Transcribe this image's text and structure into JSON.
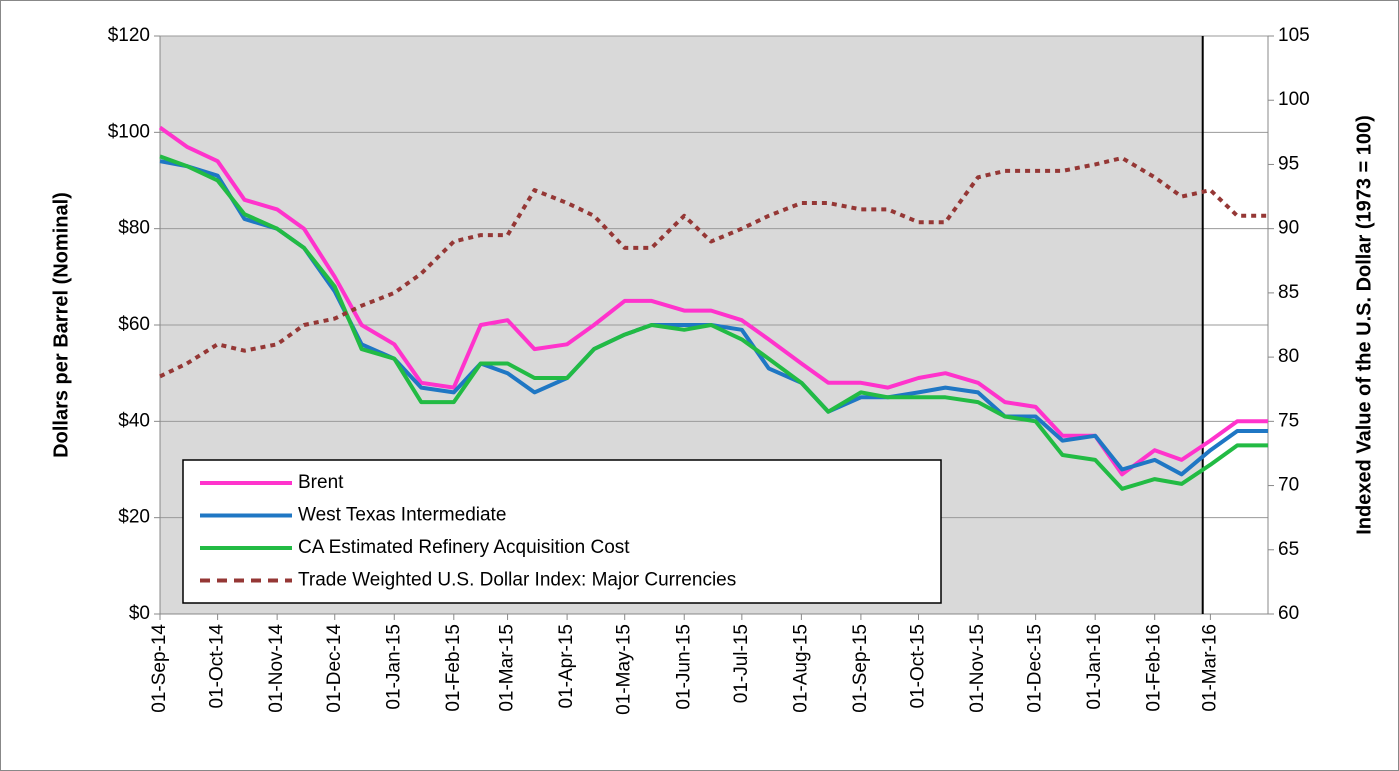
{
  "chart_data": {
    "type": "line",
    "y_label": "Dollars per Barrel (Nominal)",
    "y2_label": "Indexed Value of the U.S. Dollar (1973 = 100)",
    "x": [
      "2014-09-01",
      "2014-09-15",
      "2014-10-01",
      "2014-10-15",
      "2014-11-01",
      "2014-11-15",
      "2014-12-01",
      "2014-12-15",
      "2015-01-01",
      "2015-01-15",
      "2015-02-01",
      "2015-02-15",
      "2015-03-01",
      "2015-03-15",
      "2015-04-01",
      "2015-04-15",
      "2015-05-01",
      "2015-05-15",
      "2015-06-01",
      "2015-06-15",
      "2015-07-01",
      "2015-07-15",
      "2015-08-01",
      "2015-08-15",
      "2015-09-01",
      "2015-09-15",
      "2015-10-01",
      "2015-10-15",
      "2015-11-01",
      "2015-11-15",
      "2015-12-01",
      "2015-12-15",
      "2016-01-01",
      "2016-01-15",
      "2016-02-01",
      "2016-02-15",
      "2016-03-01",
      "2016-03-15",
      "2016-03-31"
    ],
    "series": [
      {
        "name": "Brent",
        "color": "#ff33cc",
        "values": [
          101,
          97,
          94,
          86,
          84,
          80,
          70,
          60,
          56,
          48,
          47,
          60,
          61,
          55,
          56,
          60,
          65,
          65,
          63,
          63,
          61,
          57,
          52,
          48,
          48,
          47,
          49,
          50,
          48,
          44,
          43,
          37,
          37,
          29,
          34,
          32,
          36,
          40,
          40
        ]
      },
      {
        "name": "West Texas Intermediate",
        "color": "#1f77c4",
        "values": [
          94,
          93,
          91,
          82,
          80,
          76,
          67,
          56,
          53,
          47,
          46,
          52,
          50,
          46,
          49,
          55,
          58,
          60,
          60,
          60,
          59,
          51,
          48,
          42,
          45,
          45,
          46,
          47,
          46,
          41,
          41,
          36,
          37,
          30,
          32,
          29,
          34,
          38,
          38
        ]
      },
      {
        "name": "CA Estimated Refinery Acquisition Cost",
        "color": "#22bb44",
        "values": [
          95,
          93,
          90,
          83,
          80,
          76,
          68,
          55,
          53,
          44,
          44,
          52,
          52,
          49,
          49,
          55,
          58,
          60,
          59,
          60,
          57,
          53,
          48,
          42,
          46,
          45,
          45,
          45,
          44,
          41,
          40,
          33,
          32,
          26,
          28,
          27,
          31,
          35,
          35
        ]
      },
      {
        "name": "Trade Weighted U.S. Dollar Index: Major Currencies",
        "color": "#953735",
        "axis": "y2",
        "dashed": true,
        "values": [
          78.5,
          79.5,
          81,
          80.5,
          81,
          82.5,
          83,
          84,
          85,
          86.5,
          89,
          89.5,
          89.5,
          93,
          92,
          91,
          88.5,
          88.5,
          91,
          89,
          90,
          91,
          92,
          92,
          91.5,
          91.5,
          90.5,
          90.5,
          94,
          94.5,
          94.5,
          94.5,
          95,
          95.5,
          94,
          92.5,
          93,
          91,
          91
        ]
      }
    ],
    "xticks": [
      {
        "value": "2014-09-01",
        "label": "01-Sep-14"
      },
      {
        "value": "2014-10-01",
        "label": "01-Oct-14"
      },
      {
        "value": "2014-11-01",
        "label": "01-Nov-14"
      },
      {
        "value": "2014-12-01",
        "label": "01-Dec-14"
      },
      {
        "value": "2015-01-01",
        "label": "01-Jan-15"
      },
      {
        "value": "2015-02-01",
        "label": "01-Feb-15"
      },
      {
        "value": "2015-03-01",
        "label": "01-Mar-15"
      },
      {
        "value": "2015-04-01",
        "label": "01-Apr-15"
      },
      {
        "value": "2015-05-01",
        "label": "01-May-15"
      },
      {
        "value": "2015-06-01",
        "label": "01-Jun-15"
      },
      {
        "value": "2015-07-01",
        "label": "01-Jul-15"
      },
      {
        "value": "2015-08-01",
        "label": "01-Aug-15"
      },
      {
        "value": "2015-09-01",
        "label": "01-Sep-15"
      },
      {
        "value": "2015-10-01",
        "label": "01-Oct-15"
      },
      {
        "value": "2015-11-01",
        "label": "01-Nov-15"
      },
      {
        "value": "2015-12-01",
        "label": "01-Dec-15"
      },
      {
        "value": "2016-01-01",
        "label": "01-Jan-16"
      },
      {
        "value": "2016-02-01",
        "label": "01-Feb-16"
      },
      {
        "value": "2016-03-01",
        "label": "01-Mar-16"
      }
    ],
    "xlim": [
      "2014-09-01",
      "2016-03-31"
    ],
    "vline": "2016-02-26",
    "ylim": [
      0,
      120
    ],
    "yticks": [
      {
        "value": 0,
        "label": "$0"
      },
      {
        "value": 20,
        "label": "$20"
      },
      {
        "value": 40,
        "label": "$40"
      },
      {
        "value": 60,
        "label": "$60"
      },
      {
        "value": 80,
        "label": "$80"
      },
      {
        "value": 100,
        "label": "$100"
      },
      {
        "value": 120,
        "label": "$120"
      }
    ],
    "y2lim": [
      60,
      105
    ],
    "y2ticks": [
      60,
      65,
      70,
      75,
      80,
      85,
      90,
      95,
      100,
      105
    ],
    "grid": true
  }
}
